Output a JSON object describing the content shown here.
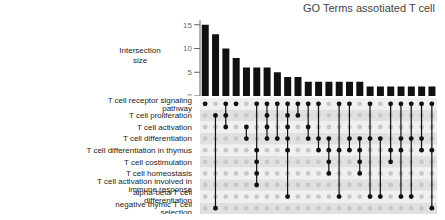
{
  "chart_data": {
    "type": "upset",
    "title": "GO Terms assotiated T cell",
    "ylabel": "Intersection\nsize",
    "values": [
      15,
      13,
      10,
      8,
      6,
      6,
      6,
      5,
      4,
      4,
      3,
      3,
      3,
      3,
      3,
      3,
      2,
      2,
      2,
      2,
      2,
      2,
      2
    ],
    "sets": [
      "T cell receptor signaling pathway",
      "T cell proliferation",
      "T cell activation",
      "T cell differentiation",
      "T cell differentiation in thymus",
      "T cell costimulation",
      "T cell homeostasis",
      "T cell activation involved in immune response",
      "alpha-beta T cell differentiation",
      "negative thymic T cell selection"
    ],
    "intersections": [
      [
        0
      ],
      [
        1,
        9
      ],
      [
        0,
        1,
        2
      ],
      [
        0
      ],
      [
        2,
        3
      ],
      [
        0,
        4,
        5,
        6,
        7
      ],
      [
        0,
        1,
        2,
        3
      ],
      [
        0,
        3
      ],
      [
        0,
        1,
        2,
        3,
        4,
        8
      ],
      [
        0,
        1
      ],
      [
        0,
        2,
        3
      ],
      [
        0,
        3,
        4
      ],
      [
        3,
        4,
        5,
        6
      ],
      [
        0,
        4,
        8
      ],
      [
        0,
        3,
        4
      ],
      [
        3,
        4,
        5,
        6
      ],
      [
        0,
        3,
        8
      ],
      [
        3,
        8
      ],
      [
        0,
        4,
        5
      ],
      [
        0,
        3,
        4,
        8
      ],
      [
        0,
        3,
        8
      ],
      [
        0,
        3,
        4
      ],
      [
        0,
        4,
        9
      ]
    ],
    "color": "#111111",
    "ylim": [
      0,
      16
    ],
    "yticks": [
      0,
      5,
      10,
      15
    ],
    "tick_labels": "y"
  }
}
